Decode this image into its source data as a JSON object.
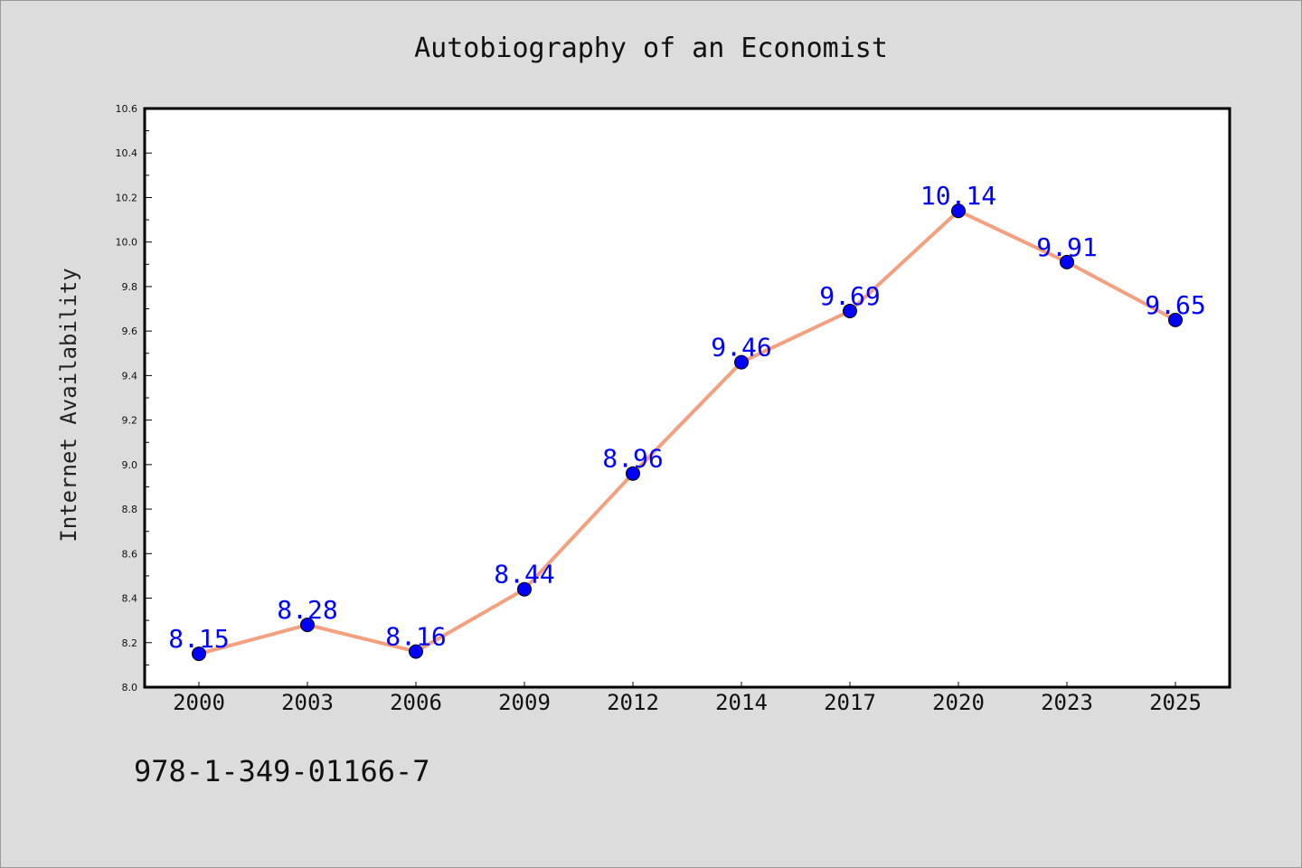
{
  "page": {
    "isbn": "978-1-349-01166-7"
  },
  "colors": {
    "background": "#dcdcdc",
    "plot_background": "#ffffff",
    "line": "#f4a07e",
    "marker": "#0000ff",
    "data_label": "#0000ff"
  },
  "chart_data": {
    "type": "line",
    "title": "Autobiography of an Economist",
    "xlabel": "",
    "ylabel": "Internet Availability",
    "categories": [
      "2000",
      "2003",
      "2006",
      "2009",
      "2012",
      "2014",
      "2017",
      "2020",
      "2023",
      "2025"
    ],
    "series": [
      {
        "values": [
          8.15,
          8.28,
          8.16,
          8.44,
          8.96,
          9.46,
          9.69,
          10.14,
          9.91,
          9.65
        ],
        "data_labels": [
          "8.15",
          "8.28",
          "8.16",
          "8.44",
          "8.96",
          "9.46",
          "9.69",
          "10.14",
          "9.91",
          "9.65"
        ]
      }
    ],
    "ylim": [
      8.0,
      10.6
    ],
    "yticks": [
      "8.0",
      "8.2",
      "8.4",
      "8.6",
      "8.8",
      "9.0",
      "9.2",
      "9.4",
      "9.6",
      "9.8",
      "10.0",
      "10.2",
      "10.4",
      "10.6"
    ],
    "grid": false,
    "legend": "none"
  }
}
